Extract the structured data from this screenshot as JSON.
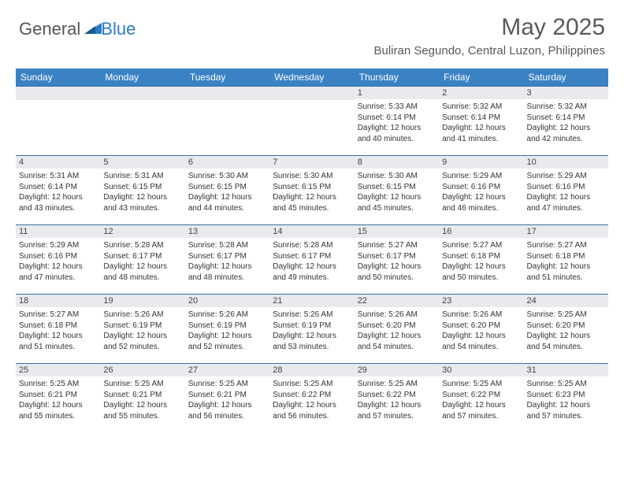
{
  "logo": {
    "text1": "General",
    "text2": "Blue"
  },
  "title": "May 2025",
  "location": "Buliran Segundo, Central Luzon, Philippines",
  "colors": {
    "header_bg": "#3a82c4",
    "header_text": "#ffffff",
    "daynum_bg": "#e8eaed",
    "row_border": "#3a6ea5",
    "title_color": "#595959",
    "body_text": "#333333",
    "logo_blue": "#2b7bc3",
    "logo_gray": "#555555"
  },
  "day_headers": [
    "Sunday",
    "Monday",
    "Tuesday",
    "Wednesday",
    "Thursday",
    "Friday",
    "Saturday"
  ],
  "weeks": [
    [
      null,
      null,
      null,
      null,
      {
        "n": "1",
        "sunrise": "5:33 AM",
        "sunset": "6:14 PM",
        "daylight": "12 hours and 40 minutes."
      },
      {
        "n": "2",
        "sunrise": "5:32 AM",
        "sunset": "6:14 PM",
        "daylight": "12 hours and 41 minutes."
      },
      {
        "n": "3",
        "sunrise": "5:32 AM",
        "sunset": "6:14 PM",
        "daylight": "12 hours and 42 minutes."
      }
    ],
    [
      {
        "n": "4",
        "sunrise": "5:31 AM",
        "sunset": "6:14 PM",
        "daylight": "12 hours and 43 minutes."
      },
      {
        "n": "5",
        "sunrise": "5:31 AM",
        "sunset": "6:15 PM",
        "daylight": "12 hours and 43 minutes."
      },
      {
        "n": "6",
        "sunrise": "5:30 AM",
        "sunset": "6:15 PM",
        "daylight": "12 hours and 44 minutes."
      },
      {
        "n": "7",
        "sunrise": "5:30 AM",
        "sunset": "6:15 PM",
        "daylight": "12 hours and 45 minutes."
      },
      {
        "n": "8",
        "sunrise": "5:30 AM",
        "sunset": "6:15 PM",
        "daylight": "12 hours and 45 minutes."
      },
      {
        "n": "9",
        "sunrise": "5:29 AM",
        "sunset": "6:16 PM",
        "daylight": "12 hours and 46 minutes."
      },
      {
        "n": "10",
        "sunrise": "5:29 AM",
        "sunset": "6:16 PM",
        "daylight": "12 hours and 47 minutes."
      }
    ],
    [
      {
        "n": "11",
        "sunrise": "5:29 AM",
        "sunset": "6:16 PM",
        "daylight": "12 hours and 47 minutes."
      },
      {
        "n": "12",
        "sunrise": "5:28 AM",
        "sunset": "6:17 PM",
        "daylight": "12 hours and 48 minutes."
      },
      {
        "n": "13",
        "sunrise": "5:28 AM",
        "sunset": "6:17 PM",
        "daylight": "12 hours and 48 minutes."
      },
      {
        "n": "14",
        "sunrise": "5:28 AM",
        "sunset": "6:17 PM",
        "daylight": "12 hours and 49 minutes."
      },
      {
        "n": "15",
        "sunrise": "5:27 AM",
        "sunset": "6:17 PM",
        "daylight": "12 hours and 50 minutes."
      },
      {
        "n": "16",
        "sunrise": "5:27 AM",
        "sunset": "6:18 PM",
        "daylight": "12 hours and 50 minutes."
      },
      {
        "n": "17",
        "sunrise": "5:27 AM",
        "sunset": "6:18 PM",
        "daylight": "12 hours and 51 minutes."
      }
    ],
    [
      {
        "n": "18",
        "sunrise": "5:27 AM",
        "sunset": "6:18 PM",
        "daylight": "12 hours and 51 minutes."
      },
      {
        "n": "19",
        "sunrise": "5:26 AM",
        "sunset": "6:19 PM",
        "daylight": "12 hours and 52 minutes."
      },
      {
        "n": "20",
        "sunrise": "5:26 AM",
        "sunset": "6:19 PM",
        "daylight": "12 hours and 52 minutes."
      },
      {
        "n": "21",
        "sunrise": "5:26 AM",
        "sunset": "6:19 PM",
        "daylight": "12 hours and 53 minutes."
      },
      {
        "n": "22",
        "sunrise": "5:26 AM",
        "sunset": "6:20 PM",
        "daylight": "12 hours and 54 minutes."
      },
      {
        "n": "23",
        "sunrise": "5:26 AM",
        "sunset": "6:20 PM",
        "daylight": "12 hours and 54 minutes."
      },
      {
        "n": "24",
        "sunrise": "5:25 AM",
        "sunset": "6:20 PM",
        "daylight": "12 hours and 54 minutes."
      }
    ],
    [
      {
        "n": "25",
        "sunrise": "5:25 AM",
        "sunset": "6:21 PM",
        "daylight": "12 hours and 55 minutes."
      },
      {
        "n": "26",
        "sunrise": "5:25 AM",
        "sunset": "6:21 PM",
        "daylight": "12 hours and 55 minutes."
      },
      {
        "n": "27",
        "sunrise": "5:25 AM",
        "sunset": "6:21 PM",
        "daylight": "12 hours and 56 minutes."
      },
      {
        "n": "28",
        "sunrise": "5:25 AM",
        "sunset": "6:22 PM",
        "daylight": "12 hours and 56 minutes."
      },
      {
        "n": "29",
        "sunrise": "5:25 AM",
        "sunset": "6:22 PM",
        "daylight": "12 hours and 57 minutes."
      },
      {
        "n": "30",
        "sunrise": "5:25 AM",
        "sunset": "6:22 PM",
        "daylight": "12 hours and 57 minutes."
      },
      {
        "n": "31",
        "sunrise": "5:25 AM",
        "sunset": "6:23 PM",
        "daylight": "12 hours and 57 minutes."
      }
    ]
  ],
  "labels": {
    "sunrise": "Sunrise:",
    "sunset": "Sunset:",
    "daylight": "Daylight:"
  }
}
